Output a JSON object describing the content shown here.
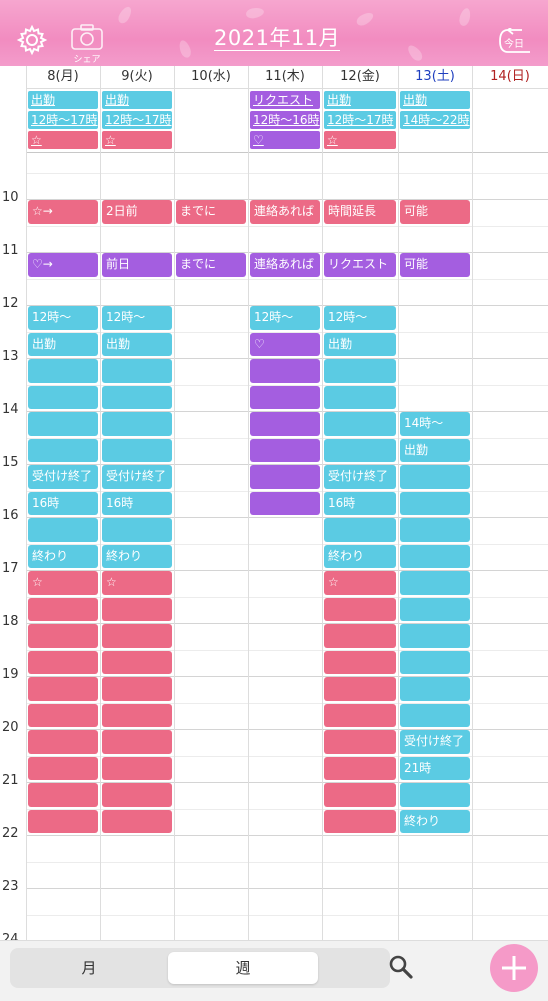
{
  "header": {
    "title": "2021年11月",
    "share_label": "シェア",
    "today_label": "今日"
  },
  "days": [
    {
      "label": "8(月)",
      "color": "#333333"
    },
    {
      "label": "9(火)",
      "color": "#333333"
    },
    {
      "label": "10(水)",
      "color": "#333333"
    },
    {
      "label": "11(木)",
      "color": "#333333"
    },
    {
      "label": "12(金)",
      "color": "#333333"
    },
    {
      "label": "13(土)",
      "color": "#1f3fbf"
    },
    {
      "label": "14(日)",
      "color": "#b02020"
    }
  ],
  "hours": [
    "10",
    "11",
    "12",
    "13",
    "14",
    "15",
    "16",
    "17",
    "18",
    "19",
    "20",
    "21",
    "22",
    "23",
    "24"
  ],
  "colors": {
    "cyan": "#5bcbe3",
    "pink": "#ec6a86",
    "purple": "#a45ee0"
  },
  "all_day": [
    {
      "day": 0,
      "row": 0,
      "color": "cyan",
      "text": "出勤"
    },
    {
      "day": 0,
      "row": 1,
      "color": "cyan",
      "text": "12時〜17時"
    },
    {
      "day": 0,
      "row": 2,
      "color": "pink",
      "text": "☆"
    },
    {
      "day": 1,
      "row": 0,
      "color": "cyan",
      "text": "出勤"
    },
    {
      "day": 1,
      "row": 1,
      "color": "cyan",
      "text": "12時〜17時"
    },
    {
      "day": 1,
      "row": 2,
      "color": "pink",
      "text": "☆"
    },
    {
      "day": 3,
      "row": 0,
      "color": "purple",
      "text": "リクエスト"
    },
    {
      "day": 3,
      "row": 1,
      "color": "purple",
      "text": "12時〜16時"
    },
    {
      "day": 3,
      "row": 2,
      "color": "purple",
      "text": "♡"
    },
    {
      "day": 4,
      "row": 0,
      "color": "cyan",
      "text": "出勤"
    },
    {
      "day": 4,
      "row": 1,
      "color": "cyan",
      "text": "12時〜17時"
    },
    {
      "day": 4,
      "row": 2,
      "color": "pink",
      "text": "☆"
    },
    {
      "day": 5,
      "row": 0,
      "color": "cyan",
      "text": "出勤"
    },
    {
      "day": 5,
      "row": 1,
      "color": "cyan",
      "text": "14時〜22時"
    }
  ],
  "timed": [
    {
      "day": 0,
      "start": 10,
      "slots": 1,
      "color": "pink",
      "labels": [
        "☆→"
      ]
    },
    {
      "day": 1,
      "start": 10,
      "slots": 1,
      "color": "pink",
      "labels": [
        "2日前"
      ]
    },
    {
      "day": 2,
      "start": 10,
      "slots": 1,
      "color": "pink",
      "labels": [
        "までに"
      ]
    },
    {
      "day": 3,
      "start": 10,
      "slots": 1,
      "color": "pink",
      "labels": [
        "連絡あれば"
      ]
    },
    {
      "day": 4,
      "start": 10,
      "slots": 1,
      "color": "pink",
      "labels": [
        "時間延長"
      ]
    },
    {
      "day": 5,
      "start": 10,
      "slots": 1,
      "color": "pink",
      "labels": [
        "可能"
      ]
    },
    {
      "day": 0,
      "start": 11,
      "slots": 1,
      "color": "purple",
      "labels": [
        "♡→"
      ]
    },
    {
      "day": 1,
      "start": 11,
      "slots": 1,
      "color": "purple",
      "labels": [
        "前日"
      ]
    },
    {
      "day": 2,
      "start": 11,
      "slots": 1,
      "color": "purple",
      "labels": [
        "までに"
      ]
    },
    {
      "day": 3,
      "start": 11,
      "slots": 1,
      "color": "purple",
      "labels": [
        "連絡あれば"
      ]
    },
    {
      "day": 4,
      "start": 11,
      "slots": 1,
      "color": "purple",
      "labels": [
        "リクエスト"
      ]
    },
    {
      "day": 5,
      "start": 11,
      "slots": 1,
      "color": "purple",
      "labels": [
        "可能"
      ]
    },
    {
      "day": 0,
      "start": 12,
      "slots": 10,
      "color": "cyan",
      "labels": [
        "12時〜",
        "出勤",
        "",
        "",
        "",
        "",
        "受付け終了",
        "16時",
        "",
        "終わり"
      ]
    },
    {
      "day": 1,
      "start": 12,
      "slots": 10,
      "color": "cyan",
      "labels": [
        "12時〜",
        "出勤",
        "",
        "",
        "",
        "",
        "受付け終了",
        "16時",
        "",
        "終わり"
      ]
    },
    {
      "day": 3,
      "start": 12,
      "slots": 1,
      "color": "cyan",
      "labels": [
        "12時〜"
      ]
    },
    {
      "day": 3,
      "start": 12.5,
      "slots": 7,
      "color": "purple",
      "labels": [
        "♡",
        "",
        "",
        "",
        "",
        "",
        ""
      ]
    },
    {
      "day": 4,
      "start": 12,
      "slots": 10,
      "color": "cyan",
      "labels": [
        "12時〜",
        "出勤",
        "",
        "",
        "",
        "",
        "受付け終了",
        "16時",
        "",
        "終わり"
      ]
    },
    {
      "day": 5,
      "start": 14,
      "slots": 16,
      "color": "cyan",
      "labels": [
        "14時〜",
        "出勤",
        "",
        "",
        "",
        "",
        "",
        "",
        "",
        "",
        "",
        "",
        "受付け終了",
        "21時",
        "",
        "終わり"
      ]
    },
    {
      "day": 0,
      "start": 17,
      "slots": 10,
      "color": "pink",
      "labels": [
        "☆",
        "",
        "",
        "",
        "",
        "",
        "",
        "",
        "",
        ""
      ]
    },
    {
      "day": 1,
      "start": 17,
      "slots": 10,
      "color": "pink",
      "labels": [
        "☆",
        "",
        "",
        "",
        "",
        "",
        "",
        "",
        "",
        ""
      ]
    },
    {
      "day": 4,
      "start": 17,
      "slots": 10,
      "color": "pink",
      "labels": [
        "☆",
        "",
        "",
        "",
        "",
        "",
        "",
        "",
        "",
        ""
      ]
    }
  ],
  "tabs": {
    "month": "月",
    "week": "週"
  }
}
